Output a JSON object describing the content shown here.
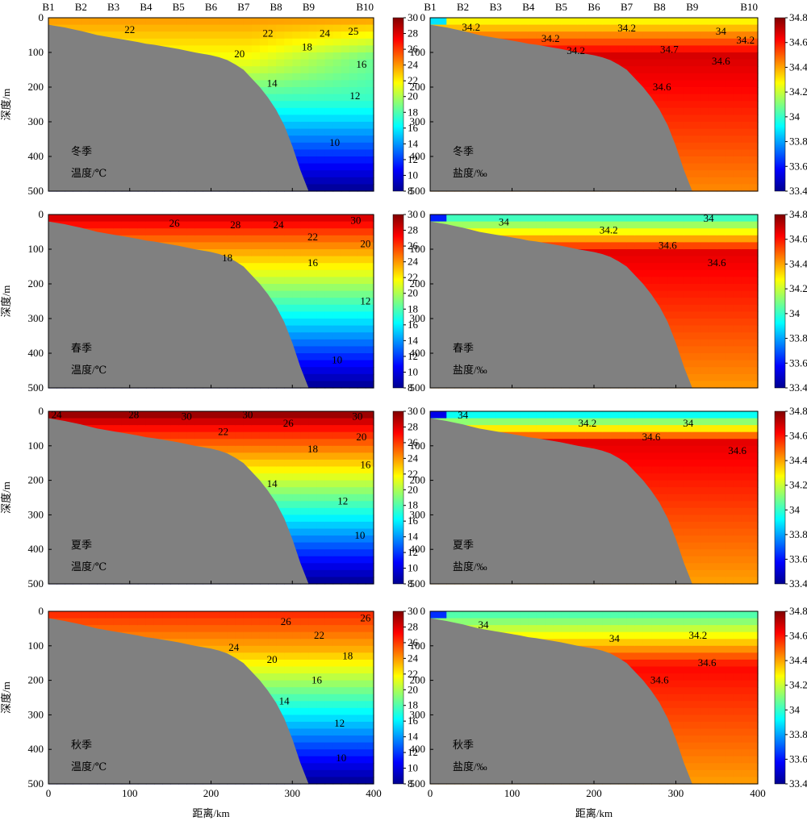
{
  "chart_data": {
    "type": "heatmap",
    "stations": [
      "B1",
      "B2",
      "B3",
      "B4",
      "B5",
      "B6",
      "B7",
      "B8",
      "B9",
      "B10"
    ],
    "station_x": [
      0,
      40,
      80,
      120,
      160,
      200,
      240,
      280,
      320,
      400
    ],
    "xlabel": "距离/km",
    "ylabel": "深度/m",
    "xlim": [
      0,
      400
    ],
    "ylim": [
      0,
      500
    ],
    "xticks": [
      0,
      100,
      200,
      300,
      400
    ],
    "yticks": [
      0,
      100,
      200,
      300,
      400,
      500
    ],
    "topography": {
      "x": [
        0,
        10,
        20,
        30,
        40,
        50,
        60,
        70,
        80,
        90,
        100,
        110,
        120,
        130,
        140,
        150,
        160,
        170,
        180,
        190,
        200,
        210,
        220,
        230,
        240,
        250,
        260,
        270,
        280,
        290,
        300,
        310,
        320,
        400
      ],
      "depth": [
        20,
        24,
        28,
        33,
        38,
        44,
        50,
        54,
        58,
        62,
        66,
        70,
        75,
        78,
        82,
        86,
        90,
        95,
        100,
        104,
        108,
        114,
        122,
        135,
        150,
        175,
        200,
        230,
        265,
        310,
        370,
        440,
        500,
        500
      ]
    },
    "temperature_colorbar": {
      "ticks": [
        8,
        10,
        12,
        14,
        16,
        18,
        20,
        22,
        24,
        26,
        28,
        30
      ],
      "range": [
        8,
        30
      ]
    },
    "salinity_colorbar": {
      "ticks": [
        "33.4",
        "33.6",
        "33.8",
        "34",
        "34.2",
        "34.4",
        "34.6",
        "34.8"
      ],
      "range": [
        33.4,
        34.8
      ]
    },
    "panels": [
      {
        "season": "冬季",
        "variable": "温度/℃",
        "contour_labels": [
          {
            "text": "22",
            "x": 100,
            "y": 35
          },
          {
            "text": "22",
            "x": 270,
            "y": 45
          },
          {
            "text": "24",
            "x": 340,
            "y": 45
          },
          {
            "text": "25",
            "x": 375,
            "y": 40
          },
          {
            "text": "20",
            "x": 235,
            "y": 105
          },
          {
            "text": "18",
            "x": 318,
            "y": 85
          },
          {
            "text": "16",
            "x": 385,
            "y": 135
          },
          {
            "text": "14",
            "x": 275,
            "y": 190
          },
          {
            "text": "12",
            "x": 377,
            "y": 225
          },
          {
            "text": "10",
            "x": 352,
            "y": 360
          }
        ]
      },
      {
        "season": "冬季",
        "variable": "盐度/‰",
        "contour_labels": [
          {
            "text": "34.2",
            "x": 50,
            "y": 28
          },
          {
            "text": "34.2",
            "x": 147,
            "y": 60
          },
          {
            "text": "34.2",
            "x": 178,
            "y": 95
          },
          {
            "text": "34.2",
            "x": 240,
            "y": 30
          },
          {
            "text": "34",
            "x": 355,
            "y": 40
          },
          {
            "text": "34.2",
            "x": 385,
            "y": 65
          },
          {
            "text": "34.7",
            "x": 292,
            "y": 92
          },
          {
            "text": "34.6",
            "x": 355,
            "y": 125
          },
          {
            "text": "34.6",
            "x": 283,
            "y": 200
          }
        ]
      },
      {
        "season": "春季",
        "variable": "温度/℃",
        "contour_labels": [
          {
            "text": "26",
            "x": 155,
            "y": 25
          },
          {
            "text": "28",
            "x": 230,
            "y": 30
          },
          {
            "text": "24",
            "x": 283,
            "y": 30
          },
          {
            "text": "30",
            "x": 378,
            "y": 18
          },
          {
            "text": "22",
            "x": 325,
            "y": 65
          },
          {
            "text": "20",
            "x": 390,
            "y": 85
          },
          {
            "text": "18",
            "x": 220,
            "y": 125
          },
          {
            "text": "16",
            "x": 325,
            "y": 140
          },
          {
            "text": "12",
            "x": 390,
            "y": 250
          },
          {
            "text": "10",
            "x": 355,
            "y": 420
          }
        ]
      },
      {
        "season": "春季",
        "variable": "盐度/‰",
        "contour_labels": [
          {
            "text": "34",
            "x": 90,
            "y": 22
          },
          {
            "text": "34",
            "x": 340,
            "y": 12
          },
          {
            "text": "34.2",
            "x": 218,
            "y": 45
          },
          {
            "text": "34.6",
            "x": 290,
            "y": 90
          },
          {
            "text": "34.6",
            "x": 350,
            "y": 140
          }
        ]
      },
      {
        "season": "夏季",
        "variable": "温度/℃",
        "contour_labels": [
          {
            "text": "24",
            "x": 10,
            "y": 10
          },
          {
            "text": "28",
            "x": 105,
            "y": 10
          },
          {
            "text": "30",
            "x": 170,
            "y": 15
          },
          {
            "text": "30",
            "x": 245,
            "y": 10
          },
          {
            "text": "26",
            "x": 295,
            "y": 35
          },
          {
            "text": "30",
            "x": 380,
            "y": 15
          },
          {
            "text": "22",
            "x": 215,
            "y": 60
          },
          {
            "text": "18",
            "x": 325,
            "y": 110
          },
          {
            "text": "20",
            "x": 385,
            "y": 75
          },
          {
            "text": "16",
            "x": 390,
            "y": 155
          },
          {
            "text": "14",
            "x": 275,
            "y": 210
          },
          {
            "text": "12",
            "x": 362,
            "y": 260
          },
          {
            "text": "10",
            "x": 383,
            "y": 360
          }
        ]
      },
      {
        "season": "夏季",
        "variable": "盐度/‰",
        "contour_labels": [
          {
            "text": "34",
            "x": 40,
            "y": 12
          },
          {
            "text": "34.2",
            "x": 192,
            "y": 35
          },
          {
            "text": "34",
            "x": 315,
            "y": 35
          },
          {
            "text": "34.6",
            "x": 270,
            "y": 75
          },
          {
            "text": "34.6",
            "x": 375,
            "y": 115
          }
        ]
      },
      {
        "season": "秋季",
        "variable": "温度/℃",
        "contour_labels": [
          {
            "text": "26",
            "x": 292,
            "y": 30
          },
          {
            "text": "26",
            "x": 390,
            "y": 20
          },
          {
            "text": "24",
            "x": 228,
            "y": 105
          },
          {
            "text": "22",
            "x": 333,
            "y": 70
          },
          {
            "text": "20",
            "x": 275,
            "y": 140
          },
          {
            "text": "18",
            "x": 368,
            "y": 130
          },
          {
            "text": "16",
            "x": 330,
            "y": 200
          },
          {
            "text": "14",
            "x": 290,
            "y": 260
          },
          {
            "text": "12",
            "x": 358,
            "y": 325
          },
          {
            "text": "10",
            "x": 360,
            "y": 425
          }
        ]
      },
      {
        "season": "秋季",
        "variable": "盐度/‰",
        "contour_labels": [
          {
            "text": "34",
            "x": 65,
            "y": 40
          },
          {
            "text": "34",
            "x": 225,
            "y": 80
          },
          {
            "text": "34.2",
            "x": 327,
            "y": 70
          },
          {
            "text": "34.6",
            "x": 338,
            "y": 150
          },
          {
            "text": "34.6",
            "x": 280,
            "y": 200
          }
        ]
      }
    ]
  }
}
